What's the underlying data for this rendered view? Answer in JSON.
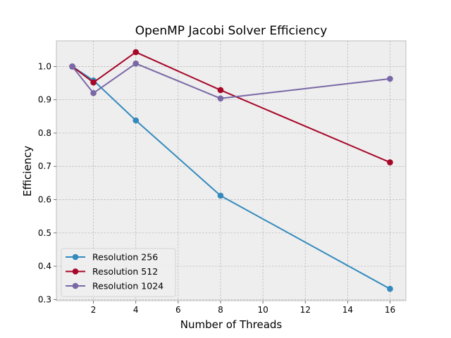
{
  "chart_data": {
    "type": "line",
    "title": "OpenMP Jacobi Solver Efficiency",
    "xlabel": "Number of Threads",
    "ylabel": "Efficiency",
    "xlim": [
      0.25,
      16.75
    ],
    "ylim": [
      0.2965,
      1.077
    ],
    "xticks": [
      2,
      4,
      6,
      8,
      10,
      12,
      14,
      16
    ],
    "yticks": [
      0.3,
      0.4,
      0.5,
      0.6,
      0.7,
      0.8,
      0.9,
      1.0
    ],
    "ytick_labels": [
      "0.3",
      "0.4",
      "0.5",
      "0.6",
      "0.7",
      "0.8",
      "0.9",
      "1.0"
    ],
    "grid": true,
    "legend_position": "lower-left",
    "x": [
      1,
      2,
      4,
      8,
      16
    ],
    "series": [
      {
        "name": "Resolution 256",
        "color": "#348ABD",
        "values": [
          1.0,
          0.958,
          0.838,
          0.612,
          0.332
        ]
      },
      {
        "name": "Resolution 512",
        "color": "#A60628",
        "values": [
          1.0,
          0.952,
          1.043,
          0.929,
          0.712
        ]
      },
      {
        "name": "Resolution 1024",
        "color": "#7A68A6",
        "values": [
          1.0,
          0.92,
          1.009,
          0.904,
          0.963
        ]
      }
    ]
  }
}
